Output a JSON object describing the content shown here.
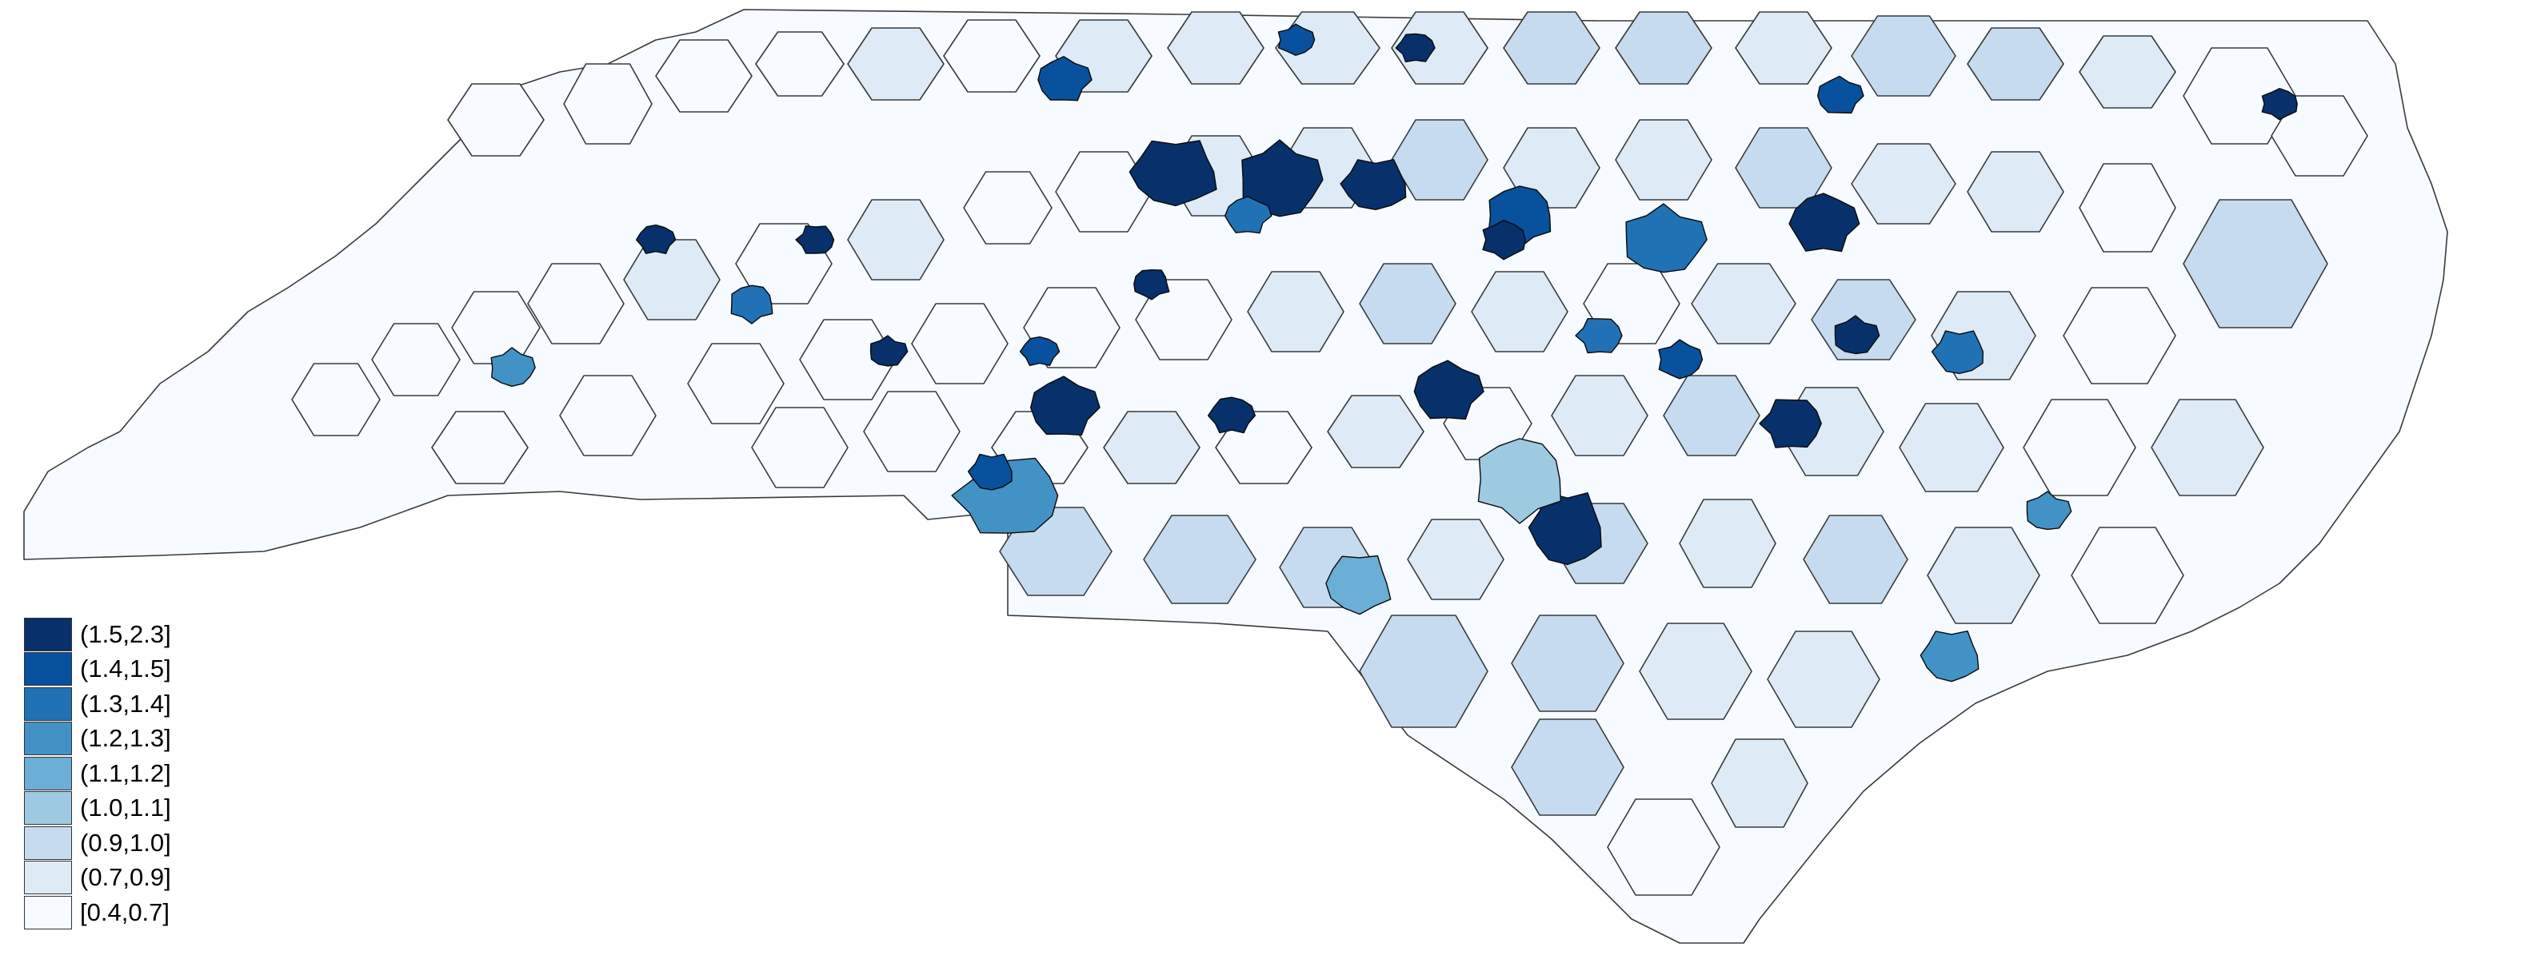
{
  "map": {
    "subject": "North Carolina choropleth map (county and urban-area polygons)",
    "classes": [
      {
        "label": "(1.5,2.3]",
        "color": "#08306b"
      },
      {
        "label": "(1.4,1.5]",
        "color": "#08519c"
      },
      {
        "label": "(1.3,1.4]",
        "color": "#2171b5"
      },
      {
        "label": "(1.2,1.3]",
        "color": "#4292c6"
      },
      {
        "label": "(1.1,1.2]",
        "color": "#6baed6"
      },
      {
        "label": "(1.0,1.1]",
        "color": "#9ecae1"
      },
      {
        "label": "(0.9,1.0]",
        "color": "#c6dbef"
      },
      {
        "label": "(0.7,0.9]",
        "color": "#deebf7"
      },
      {
        "label": "[0.4,0.7]",
        "color": "#f7fbff"
      }
    ],
    "legend_position": "bottom-left",
    "border_color": "#3a3a3a"
  }
}
